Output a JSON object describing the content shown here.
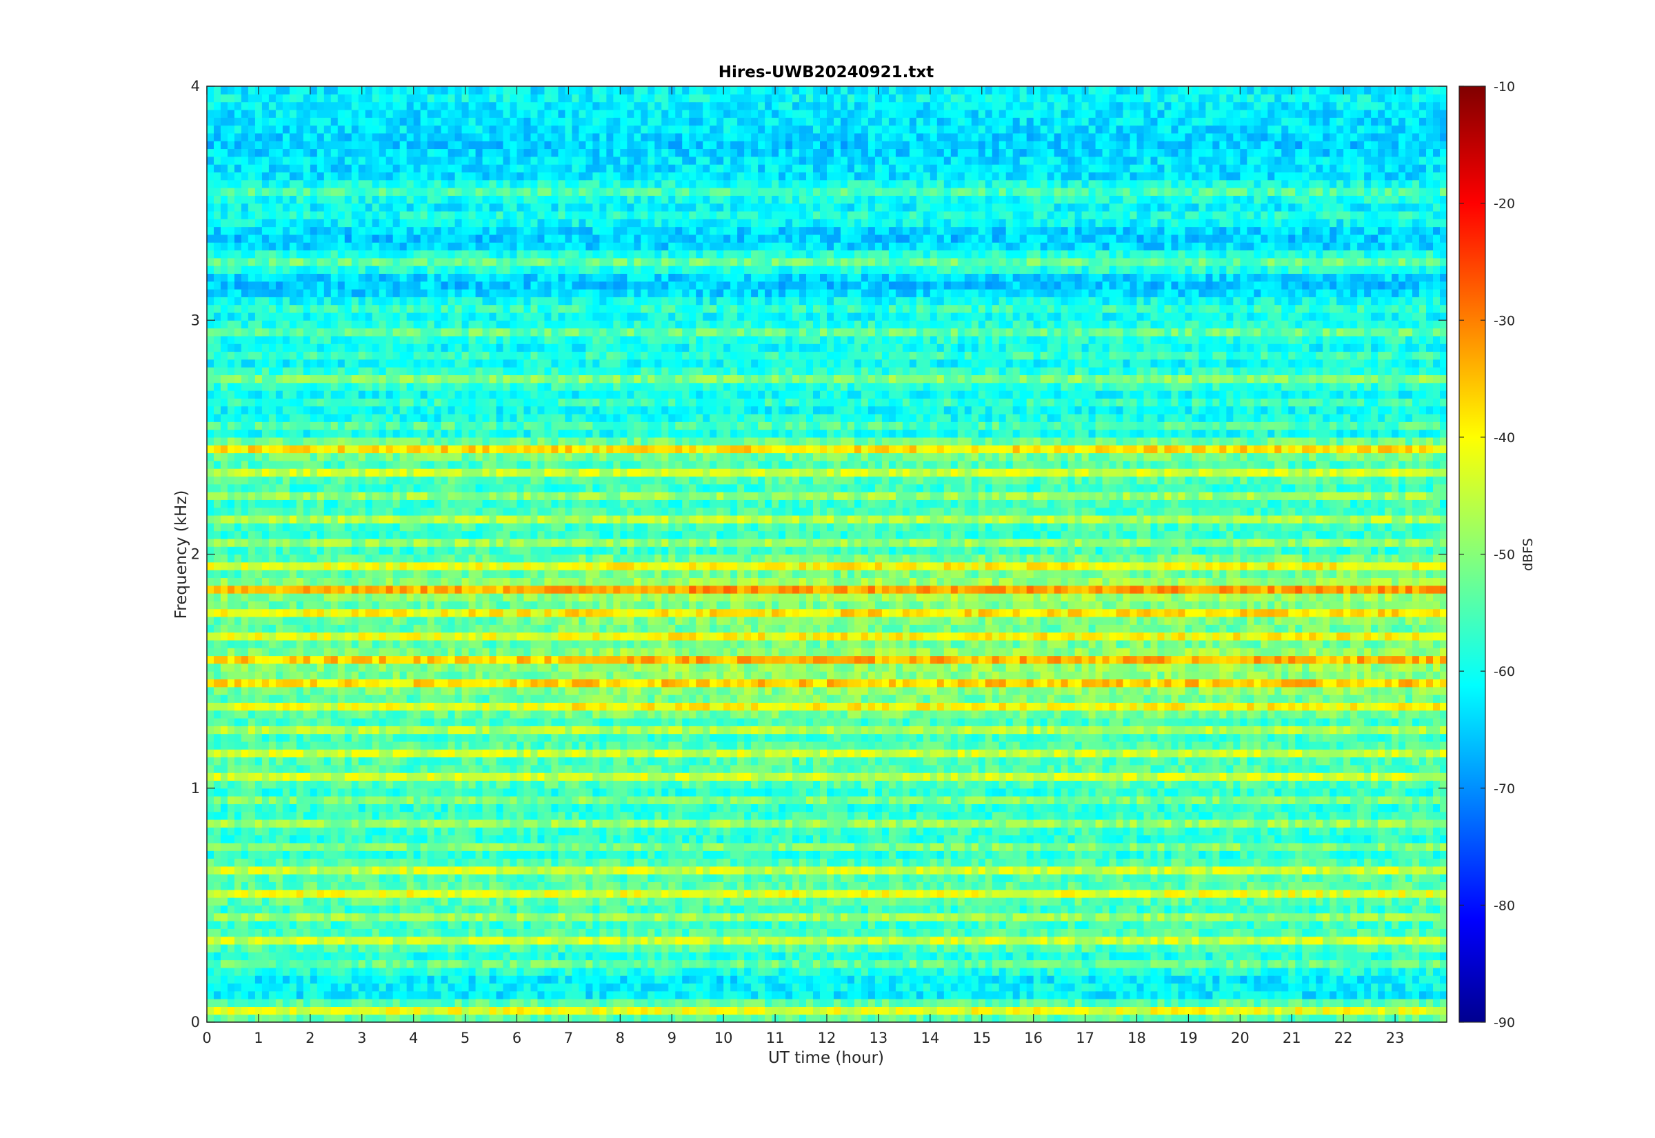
{
  "chart_data": {
    "type": "heatmap",
    "title": "Hires-UWB20240921.txt",
    "xlabel": "UT time (hour)",
    "ylabel": "Frequency (kHz)",
    "xlim": [
      0,
      24
    ],
    "ylim": [
      0,
      4
    ],
    "x_ticks": [
      "0",
      "1",
      "2",
      "3",
      "4",
      "5",
      "6",
      "7",
      "8",
      "9",
      "10",
      "11",
      "12",
      "13",
      "14",
      "15",
      "16",
      "17",
      "18",
      "19",
      "20",
      "21",
      "22",
      "23"
    ],
    "y_ticks": [
      "0",
      "1",
      "2",
      "3",
      "4"
    ],
    "colorbar": {
      "label": "dBFS",
      "range": [
        -90,
        -10
      ],
      "ticks": [
        "-90",
        "-80",
        "-70",
        "-60",
        "-50",
        "-40",
        "-30",
        "-20",
        "-10"
      ],
      "colormap": "jet"
    },
    "background_level_dbfs": -62,
    "bands": [
      {
        "freq_khz": 0.05,
        "level_dbfs": -42
      },
      {
        "freq_khz": 0.15,
        "level_dbfs": -60
      },
      {
        "freq_khz": 0.25,
        "level_dbfs": -52
      },
      {
        "freq_khz": 0.35,
        "level_dbfs": -44
      },
      {
        "freq_khz": 0.45,
        "level_dbfs": -48
      },
      {
        "freq_khz": 0.55,
        "level_dbfs": -42
      },
      {
        "freq_khz": 0.65,
        "level_dbfs": -44
      },
      {
        "freq_khz": 0.75,
        "level_dbfs": -50
      },
      {
        "freq_khz": 0.85,
        "level_dbfs": -48
      },
      {
        "freq_khz": 0.95,
        "level_dbfs": -50
      },
      {
        "freq_khz": 1.05,
        "level_dbfs": -44
      },
      {
        "freq_khz": 1.15,
        "level_dbfs": -44
      },
      {
        "freq_khz": 1.25,
        "level_dbfs": -46
      },
      {
        "freq_khz": 1.35,
        "level_dbfs": -42
      },
      {
        "freq_khz": 1.45,
        "level_dbfs": -38
      },
      {
        "freq_khz": 1.55,
        "level_dbfs": -36
      },
      {
        "freq_khz": 1.65,
        "level_dbfs": -42
      },
      {
        "freq_khz": 1.75,
        "level_dbfs": -40
      },
      {
        "freq_khz": 1.85,
        "level_dbfs": -34
      },
      {
        "freq_khz": 1.95,
        "level_dbfs": -42
      },
      {
        "freq_khz": 2.05,
        "level_dbfs": -48
      },
      {
        "freq_khz": 2.15,
        "level_dbfs": -46
      },
      {
        "freq_khz": 2.25,
        "level_dbfs": -48
      },
      {
        "freq_khz": 2.35,
        "level_dbfs": -44
      },
      {
        "freq_khz": 2.45,
        "level_dbfs": -38
      },
      {
        "freq_khz": 2.55,
        "level_dbfs": -54
      },
      {
        "freq_khz": 2.65,
        "level_dbfs": -56
      },
      {
        "freq_khz": 2.75,
        "level_dbfs": -50
      },
      {
        "freq_khz": 2.85,
        "level_dbfs": -56
      },
      {
        "freq_khz": 2.95,
        "level_dbfs": -52
      },
      {
        "freq_khz": 3.05,
        "level_dbfs": -56
      },
      {
        "freq_khz": 3.15,
        "level_dbfs": -64
      },
      {
        "freq_khz": 3.25,
        "level_dbfs": -52
      },
      {
        "freq_khz": 3.35,
        "level_dbfs": -64
      },
      {
        "freq_khz": 3.45,
        "level_dbfs": -58
      },
      {
        "freq_khz": 3.55,
        "level_dbfs": -54
      },
      {
        "freq_khz": 3.65,
        "level_dbfs": -62
      },
      {
        "freq_khz": 3.75,
        "level_dbfs": -64
      },
      {
        "freq_khz": 3.85,
        "level_dbfs": -62
      },
      {
        "freq_khz": 3.95,
        "level_dbfs": -60
      }
    ]
  }
}
